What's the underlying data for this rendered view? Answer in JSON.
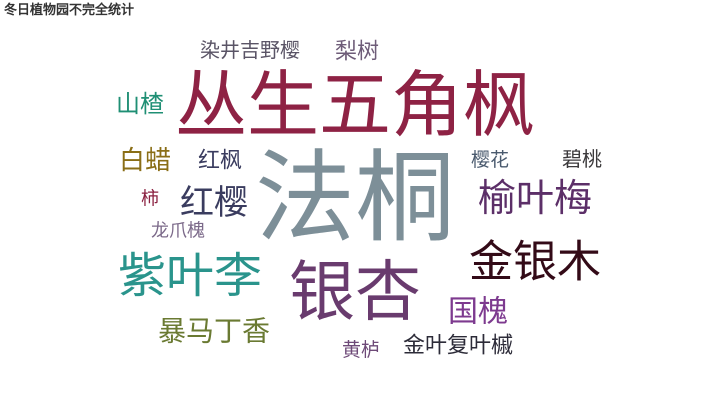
{
  "chart_data": {
    "type": "wordcloud",
    "title": "冬日植物园不完全统计",
    "words": [
      {
        "text": "法桐",
        "value": 100,
        "color": "#7d8f98"
      },
      {
        "text": "丛生五角枫",
        "value": 72,
        "color": "#8e2244"
      },
      {
        "text": "银杏",
        "value": 66,
        "color": "#693b6e"
      },
      {
        "text": "紫叶李",
        "value": 48,
        "color": "#2a948c"
      },
      {
        "text": "金银木",
        "value": 44,
        "color": "#330a17"
      },
      {
        "text": "榆叶梅",
        "value": 38,
        "color": "#5c2f68"
      },
      {
        "text": "红樱",
        "value": 34,
        "color": "#3a3c5f"
      },
      {
        "text": "国槐",
        "value": 30,
        "color": "#7d3a8f"
      },
      {
        "text": "暴马丁香",
        "value": 28,
        "color": "#6a7a32"
      },
      {
        "text": "白蜡",
        "value": 26,
        "color": "#8a6e16"
      },
      {
        "text": "山楂",
        "value": 24,
        "color": "#1f8f74"
      },
      {
        "text": "红枫",
        "value": 22,
        "color": "#3a3c5f"
      },
      {
        "text": "金叶复叶槭",
        "value": 22,
        "color": "#2c2b38"
      },
      {
        "text": "梨树",
        "value": 22,
        "color": "#6e5c78"
      },
      {
        "text": "染井吉野樱",
        "value": 20,
        "color": "#5a5466"
      },
      {
        "text": "碧桃",
        "value": 20,
        "color": "#3c3a3c"
      },
      {
        "text": "樱花",
        "value": 19,
        "color": "#4a5a6e"
      },
      {
        "text": "黄栌",
        "value": 19,
        "color": "#6e4a78"
      },
      {
        "text": "龙爪槐",
        "value": 18,
        "color": "#7c6a8a"
      },
      {
        "text": "柿",
        "value": 18,
        "color": "#8a2040"
      }
    ]
  }
}
